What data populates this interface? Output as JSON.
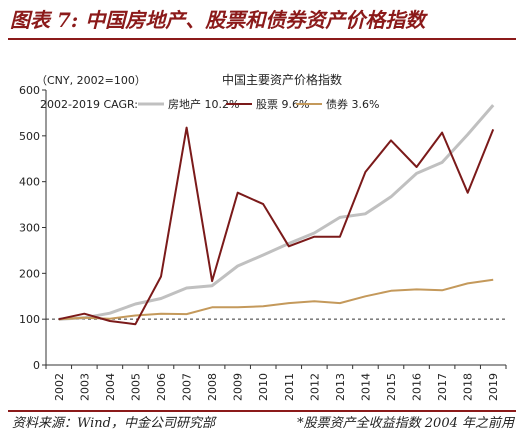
{
  "figure": {
    "title": "图表 7:  中国房地产、股票和债券资产价格指数",
    "source_note": "资料来源：Wind，中金公司研究部",
    "footnote": "*股票资产全收益指数 2004 年之前用"
  },
  "chart_data": {
    "type": "line",
    "title": "中国主要资产价格指数",
    "ylabel": "（CNY, 2002=100）",
    "legend_prefix": "2002-2019 CAGR:",
    "legend_position": "top-left",
    "grid": false,
    "ylim": [
      0,
      600
    ],
    "yticks": [
      0,
      100,
      200,
      300,
      400,
      500,
      600
    ],
    "reference_line": 100,
    "x": [
      "2002",
      "2003",
      "2004",
      "2005",
      "2006",
      "2007",
      "2008",
      "2009",
      "2010",
      "2011",
      "2012",
      "2013",
      "2014",
      "2015",
      "2016",
      "2017",
      "2018",
      "2019"
    ],
    "series": [
      {
        "name": "房地产 10.2%",
        "color": "#c0c0c0",
        "values": [
          100,
          103,
          113,
          133,
          145,
          168,
          173,
          216,
          240,
          265,
          288,
          322,
          330,
          367,
          418,
          442,
          503,
          567
        ]
      },
      {
        "name": "股票 9.6%",
        "color": "#7b1a1a",
        "values": [
          100,
          112,
          96,
          89,
          193,
          518,
          183,
          376,
          351,
          259,
          280,
          280,
          421,
          490,
          432,
          507,
          376,
          514
        ]
      },
      {
        "name": "债券 3.6%",
        "color": "#c4995b",
        "values": [
          100,
          103,
          101,
          108,
          112,
          111,
          126,
          126,
          128,
          135,
          139,
          135,
          150,
          162,
          165,
          163,
          178,
          186
        ]
      }
    ]
  }
}
